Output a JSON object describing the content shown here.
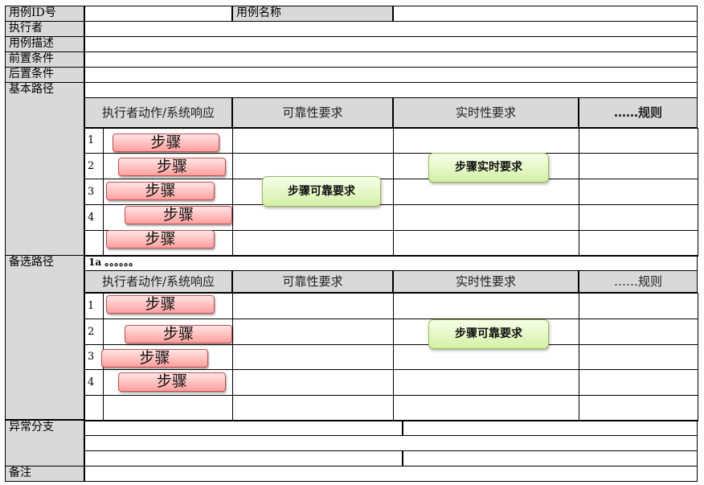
{
  "labels": {
    "id": "用例ID号",
    "name": "用例名称",
    "actor": "执行者",
    "desc": "用例描述",
    "pre": "前置条件",
    "post": "后置条件",
    "basic": "基本路径",
    "alt": "备选路径",
    "exc": "异常分支",
    "note": "备注"
  },
  "headers": {
    "action": "执行者动作/系统响应",
    "reliability": "可靠性要求",
    "realtime": "实时性要求",
    "rules": "……规则"
  },
  "alt_start": "1a 。。。。。。",
  "row_numbers": [
    "1",
    "2",
    "3",
    "4"
  ],
  "step_label": "步骤",
  "green": {
    "basic_reliability": "步骤可靠要求",
    "basic_realtime": "步骤实时要求",
    "alt_realtime": "步骤可靠要求"
  },
  "colors": {
    "header_bg": "#d9d9d9",
    "step_border": "#c0504d",
    "step_fill": "#ff9f9f",
    "green_border": "#9bbb59",
    "green_fill": "#d4f0a6"
  }
}
